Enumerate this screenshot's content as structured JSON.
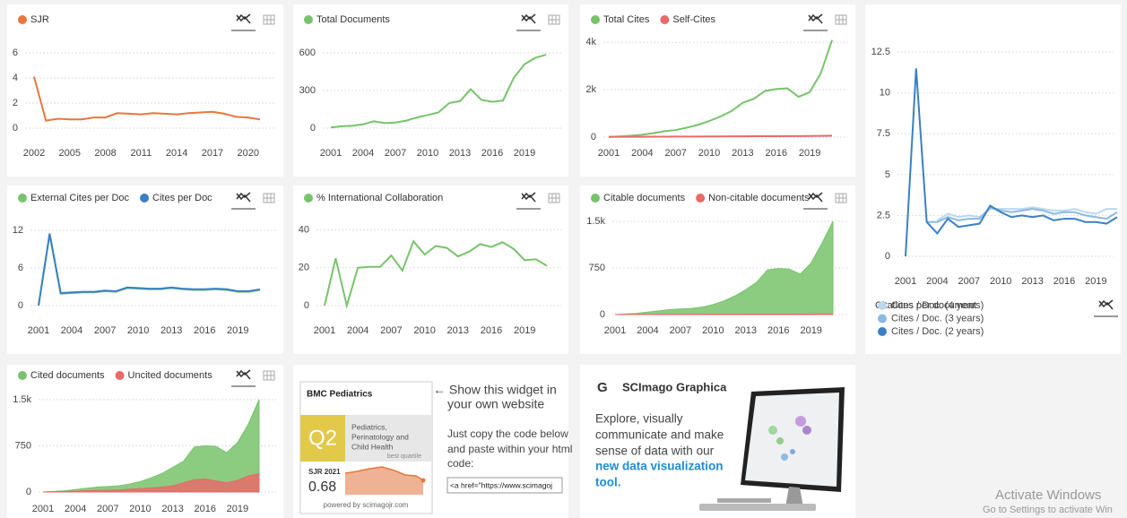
{
  "chart_data": [
    {
      "type": "line",
      "legend": "top",
      "grid": true,
      "x": [
        2002,
        2003,
        2004,
        2005,
        2006,
        2007,
        2008,
        2009,
        2010,
        2011,
        2012,
        2013,
        2014,
        2015,
        2016,
        2017,
        2018,
        2019,
        2020,
        2021
      ],
      "xlim": [
        2002,
        2021
      ],
      "xticks": [
        2002,
        2005,
        2008,
        2011,
        2014,
        2017,
        2020
      ],
      "ylim": [
        0,
        7
      ],
      "yticks": [
        0,
        2,
        4,
        6
      ],
      "series": [
        {
          "name": "SJR",
          "color": "#e8773d",
          "values": [
            4.1,
            0.6,
            0.75,
            0.7,
            0.7,
            0.85,
            0.85,
            1.2,
            1.15,
            1.1,
            1.2,
            1.15,
            1.1,
            1.2,
            1.25,
            1.3,
            1.15,
            0.9,
            0.85,
            0.7
          ]
        }
      ]
    },
    {
      "type": "line",
      "legend": "top",
      "grid": true,
      "x": [
        2001,
        2002,
        2003,
        2004,
        2005,
        2006,
        2007,
        2008,
        2009,
        2010,
        2011,
        2012,
        2013,
        2014,
        2015,
        2016,
        2017,
        2018,
        2019,
        2020,
        2021
      ],
      "xlim": [
        2001,
        2021
      ],
      "xticks": [
        2001,
        2004,
        2007,
        2010,
        2013,
        2016,
        2019
      ],
      "ylim": [
        0,
        700
      ],
      "yticks": [
        0,
        300,
        600
      ],
      "series": [
        {
          "name": "Total Documents",
          "color": "#77c36b",
          "values": [
            5,
            15,
            20,
            30,
            55,
            40,
            45,
            60,
            85,
            105,
            125,
            200,
            215,
            310,
            225,
            210,
            220,
            400,
            510,
            560,
            585
          ]
        }
      ]
    },
    {
      "type": "line",
      "legend": "top",
      "grid": true,
      "x": [
        2001,
        2002,
        2003,
        2004,
        2005,
        2006,
        2007,
        2008,
        2009,
        2010,
        2011,
        2012,
        2013,
        2014,
        2015,
        2016,
        2017,
        2018,
        2019,
        2020,
        2021
      ],
      "xlim": [
        2001,
        2021
      ],
      "xticks": [
        2001,
        2004,
        2007,
        2010,
        2013,
        2016,
        2019
      ],
      "ylim": [
        0,
        4200
      ],
      "yticks": [
        0,
        {
          "value": 2000,
          "label": "2k"
        },
        {
          "value": 4000,
          "label": "4k"
        }
      ],
      "series": [
        {
          "name": "Total Cites",
          "color": "#77c36b",
          "values": [
            10,
            30,
            60,
            100,
            170,
            250,
            300,
            400,
            520,
            680,
            870,
            1100,
            1450,
            1620,
            1950,
            2030,
            2060,
            1700,
            1900,
            2700,
            4100
          ]
        },
        {
          "name": "Self-Cites",
          "color": "#e86a6a",
          "values": [
            10,
            12,
            14,
            16,
            18,
            20,
            22,
            24,
            26,
            28,
            30,
            32,
            34,
            36,
            38,
            40,
            42,
            44,
            46,
            50,
            60
          ]
        }
      ]
    },
    {
      "type": "line",
      "title": "Citations per document",
      "legend": "bottom",
      "grid": true,
      "x": [
        2001,
        2002,
        2003,
        2004,
        2005,
        2006,
        2007,
        2008,
        2009,
        2010,
        2011,
        2012,
        2013,
        2014,
        2015,
        2016,
        2017,
        2018,
        2019,
        2020,
        2021
      ],
      "xlim": [
        2001,
        2021
      ],
      "xticks": [
        2001,
        2004,
        2007,
        2010,
        2013,
        2016,
        2019
      ],
      "ylim": [
        0,
        13
      ],
      "yticks": [
        0,
        2.5,
        5,
        7.5,
        10,
        12.5
      ],
      "series": [
        {
          "name": "Cites / Doc. (4 years)",
          "color": "#bcd8ef",
          "values": [
            null,
            null,
            null,
            2.2,
            2.6,
            2.4,
            2.5,
            2.4,
            2.9,
            2.9,
            2.9,
            2.9,
            3.0,
            2.9,
            2.8,
            2.8,
            2.9,
            2.7,
            2.6,
            2.9,
            2.9
          ]
        },
        {
          "name": "Cites / Doc. (3 years)",
          "color": "#8ab9e4",
          "values": [
            null,
            null,
            2.1,
            2.1,
            2.4,
            2.2,
            2.3,
            2.3,
            3.0,
            2.8,
            2.7,
            2.8,
            2.9,
            2.8,
            2.6,
            2.7,
            2.7,
            2.5,
            2.4,
            2.3,
            2.7
          ]
        },
        {
          "name": "Cites / Doc. (2 years)",
          "color": "#3a80c5",
          "values": [
            0,
            11.5,
            2.1,
            1.4,
            2.3,
            1.8,
            1.9,
            2.0,
            3.1,
            2.7,
            2.4,
            2.5,
            2.4,
            2.5,
            2.2,
            2.3,
            2.3,
            2.1,
            2.1,
            2.0,
            2.4
          ]
        }
      ]
    },
    {
      "type": "line",
      "legend": "top",
      "grid": true,
      "x": [
        2001,
        2002,
        2003,
        2004,
        2005,
        2006,
        2007,
        2008,
        2009,
        2010,
        2011,
        2012,
        2013,
        2014,
        2015,
        2016,
        2017,
        2018,
        2019,
        2020,
        2021
      ],
      "xlim": [
        2001,
        2021
      ],
      "xticks": [
        2001,
        2004,
        2007,
        2010,
        2013,
        2016,
        2019
      ],
      "ylim": [
        0,
        14
      ],
      "yticks": [
        0,
        6,
        12
      ],
      "series": [
        {
          "name": "External Cites per Doc",
          "color": "#77c36b",
          "values": [
            0,
            11.3,
            1.9,
            2.0,
            2.1,
            2.1,
            2.3,
            2.2,
            2.8,
            2.7,
            2.6,
            2.6,
            2.8,
            2.6,
            2.5,
            2.5,
            2.6,
            2.5,
            2.2,
            2.2,
            2.5
          ]
        },
        {
          "name": "Cites per Doc",
          "color": "#3a80c5",
          "values": [
            0,
            11.5,
            2.0,
            2.1,
            2.2,
            2.2,
            2.4,
            2.3,
            2.9,
            2.8,
            2.7,
            2.7,
            2.9,
            2.7,
            2.6,
            2.6,
            2.7,
            2.6,
            2.3,
            2.3,
            2.6
          ]
        }
      ]
    },
    {
      "type": "line",
      "legend": "top",
      "grid": true,
      "x": [
        2001,
        2002,
        2003,
        2004,
        2005,
        2006,
        2007,
        2008,
        2009,
        2010,
        2011,
        2012,
        2013,
        2014,
        2015,
        2016,
        2017,
        2018,
        2019,
        2020,
        2021
      ],
      "xlim": [
        2001,
        2021
      ],
      "xticks": [
        2001,
        2004,
        2007,
        2010,
        2013,
        2016,
        2019
      ],
      "ylim": [
        0,
        45
      ],
      "yticks": [
        0,
        20,
        40
      ],
      "series": [
        {
          "name": "% International Collaboration",
          "color": "#77c36b",
          "values": [
            0,
            25,
            0,
            20,
            20.5,
            20.5,
            26.5,
            18.5,
            34,
            27,
            31.5,
            30.5,
            26,
            28.5,
            32.5,
            31,
            33.5,
            30,
            24,
            24.5,
            21
          ]
        }
      ]
    },
    {
      "type": "area",
      "legend": "top",
      "grid": true,
      "x": [
        2001,
        2002,
        2003,
        2004,
        2005,
        2006,
        2007,
        2008,
        2009,
        2010,
        2011,
        2012,
        2013,
        2014,
        2015,
        2016,
        2017,
        2018,
        2019,
        2020,
        2021
      ],
      "xlim": [
        2001,
        2021
      ],
      "xticks": [
        2001,
        2004,
        2007,
        2010,
        2013,
        2016,
        2019
      ],
      "ylim": [
        0,
        1600
      ],
      "yticks": [
        0,
        750,
        {
          "value": 1500,
          "label": "1.5k"
        }
      ],
      "series": [
        {
          "name": "Citable documents",
          "color": "#77c36b",
          "values": [
            0,
            10,
            20,
            40,
            60,
            80,
            90,
            100,
            120,
            160,
            220,
            300,
            400,
            520,
            720,
            740,
            730,
            650,
            830,
            1150,
            1500
          ]
        },
        {
          "name": "Non-citable documents",
          "color": "#e86a6a",
          "values": [
            0,
            1,
            2,
            2,
            3,
            3,
            4,
            4,
            5,
            5,
            6,
            6,
            7,
            7,
            8,
            8,
            8,
            8,
            9,
            9,
            10
          ]
        }
      ]
    },
    {
      "type": "area",
      "legend": "top",
      "grid": true,
      "x": [
        2001,
        2002,
        2003,
        2004,
        2005,
        2006,
        2007,
        2008,
        2009,
        2010,
        2011,
        2012,
        2013,
        2014,
        2015,
        2016,
        2017,
        2018,
        2019,
        2020,
        2021
      ],
      "xlim": [
        2001,
        2021
      ],
      "xticks": [
        2001,
        2004,
        2007,
        2010,
        2013,
        2016,
        2019
      ],
      "ylim": [
        0,
        1600
      ],
      "yticks": [
        0,
        750,
        {
          "value": 1500,
          "label": "1.5k"
        }
      ],
      "series": [
        {
          "name": "Cited documents",
          "color": "#77c36b",
          "values": [
            0,
            10,
            20,
            40,
            60,
            80,
            90,
            100,
            130,
            170,
            230,
            300,
            400,
            500,
            730,
            750,
            740,
            640,
            800,
            1100,
            1500
          ]
        },
        {
          "name": "Uncited documents",
          "color": "#e86a6a",
          "values": [
            0,
            5,
            10,
            15,
            20,
            25,
            30,
            35,
            45,
            55,
            65,
            80,
            100,
            150,
            200,
            210,
            180,
            150,
            190,
            260,
            300
          ]
        }
      ]
    }
  ],
  "widget": {
    "journal": "BMC Pediatrics",
    "quartile": "Q2",
    "category_lines": [
      "Pediatrics,",
      "Perinatology and",
      "Child Health"
    ],
    "best_quartile": "best quartile",
    "sjr_label": "SJR 2021",
    "sjr_value": 0.68,
    "powered": "powered by scimagojr.com",
    "promo_lines": [
      "← Show this widget in",
      "your own website"
    ],
    "instruction_lines": [
      "Just copy the code below",
      "and paste within your html",
      "code:"
    ],
    "code": "<a href=\"https://www.scimagoj"
  },
  "graphica": {
    "logo": "G",
    "title": "SCImago Graphica",
    "lines": [
      "Explore, visually",
      "communicate and make",
      "sense of data with our"
    ],
    "link_lines": [
      "new data visualization",
      "tool."
    ]
  },
  "watermark": {
    "title": "Activate Windows",
    "subtitle": "Go to Settings to activate Win"
  }
}
